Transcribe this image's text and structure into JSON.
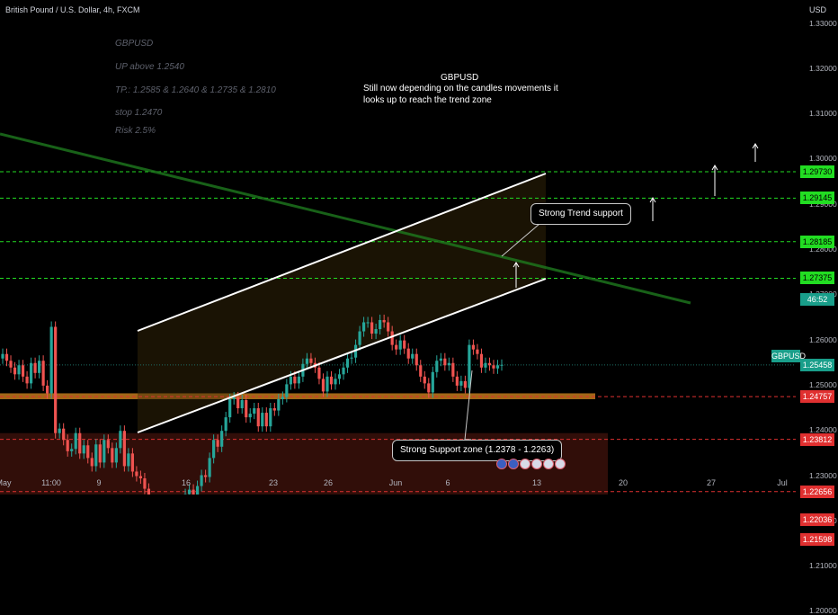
{
  "header": {
    "symbol_title": "British Pound / U.S. Dollar, 4h, FXCM",
    "currency": "USD"
  },
  "notes": [
    "GBPUSD",
    "UP above 1.2540",
    "TP.: 1.2585 & 1.2640  & 1.2735 & 1.2810",
    " stop 1.2470",
    "Risk 2.5%"
  ],
  "center_title": "GBPUSD",
  "center_text": [
    "Still now depending on the candles movements it",
    "looks up to reach the trend zone"
  ],
  "callouts": {
    "trend": "Strong Trend support",
    "support": "Strong Support zone (1.2378 - 1.2263)"
  },
  "countdown": "46:52",
  "colors": {
    "up": "#26a69a",
    "down": "#ef5350",
    "tp_line": "#22dd22",
    "support_line": "#e03030",
    "trend_line": "#1e7a1e",
    "channel": "#ffffff",
    "zone": "#5a1a10",
    "highlight": "#d98a1f"
  },
  "chart_data": {
    "type": "candlestick",
    "ylim": [
      1.2,
      1.34
    ],
    "yticks": [
      "1.33000",
      "1.32000",
      "1.31000",
      "1.30000",
      "1.29000",
      "1.28000",
      "1.27000",
      "1.26000",
      "1.25000",
      "1.24000",
      "1.23000",
      "1.22000",
      "1.21000",
      "1.20000"
    ],
    "xticks": [
      "May",
      "11:00",
      "9",
      "16",
      "23",
      "26",
      "Jun",
      "6",
      "13",
      "20",
      "27",
      "Jul"
    ],
    "price_labels": [
      {
        "text": "1.29730",
        "value": 1.2973,
        "kind": "tp"
      },
      {
        "text": "1.29145",
        "value": 1.29145,
        "kind": "tp"
      },
      {
        "text": "1.28185",
        "value": 1.28185,
        "kind": "tp"
      },
      {
        "text": "1.27375",
        "value": 1.27375,
        "kind": "tp"
      },
      {
        "text": "GBPUSD",
        "value": 1.2565,
        "kind": "symbol"
      },
      {
        "text": "1.25458",
        "value": 1.25458,
        "kind": "current"
      },
      {
        "text": "1.24757",
        "value": 1.24757,
        "kind": "support"
      },
      {
        "text": "1.23812",
        "value": 1.23812,
        "kind": "support"
      },
      {
        "text": "1.22656",
        "value": 1.22656,
        "kind": "support"
      },
      {
        "text": "1.22036",
        "value": 1.22036,
        "kind": "support"
      },
      {
        "text": "1.21598",
        "value": 1.21598,
        "kind": "support"
      }
    ],
    "close": [
      1.257,
      1.2555,
      1.254,
      1.2525,
      1.2545,
      1.252,
      1.2505,
      1.255,
      1.2528,
      1.2555,
      1.25,
      1.2483,
      1.263,
      1.2395,
      1.2405,
      1.238,
      1.2355,
      1.236,
      1.2395,
      1.235,
      1.2368,
      1.234,
      1.2322,
      1.237,
      1.233,
      1.238,
      1.2362,
      1.233,
      1.2362,
      1.24,
      1.2322,
      1.235,
      1.231,
      1.23,
      1.2295,
      1.2272,
      1.2235,
      1.2242,
      1.222,
      1.221,
      1.2228,
      1.2225,
      1.2228,
      1.2232,
      1.2238,
      1.226,
      1.227,
      1.2255,
      1.2278,
      1.2302,
      1.2298,
      1.234,
      1.238,
      1.2365,
      1.24,
      1.243,
      1.247,
      1.2474,
      1.245,
      1.2468,
      1.243,
      1.2438,
      1.245,
      1.241,
      1.244,
      1.241,
      1.245,
      1.2445,
      1.247,
      1.2475,
      1.2503,
      1.252,
      1.2505,
      1.252,
      1.2548,
      1.256,
      1.255,
      1.254,
      1.2515,
      1.2487,
      1.252,
      1.2503,
      1.2515,
      1.2525,
      1.254,
      1.256,
      1.2562,
      1.259,
      1.262,
      1.264,
      1.264,
      1.2615,
      1.2625,
      1.2645,
      1.264,
      1.262,
      1.259,
      1.258,
      1.26,
      1.2582,
      1.256,
      1.257,
      1.2545,
      1.252,
      1.2505,
      1.2485,
      1.253,
      1.2555,
      1.256,
      1.2545,
      1.255,
      1.252,
      1.25,
      1.251,
      1.2495,
      1.259,
      1.258,
      1.257,
      1.254,
      1.255,
      1.2545,
      1.2538,
      1.2545,
      1.2546
    ]
  }
}
